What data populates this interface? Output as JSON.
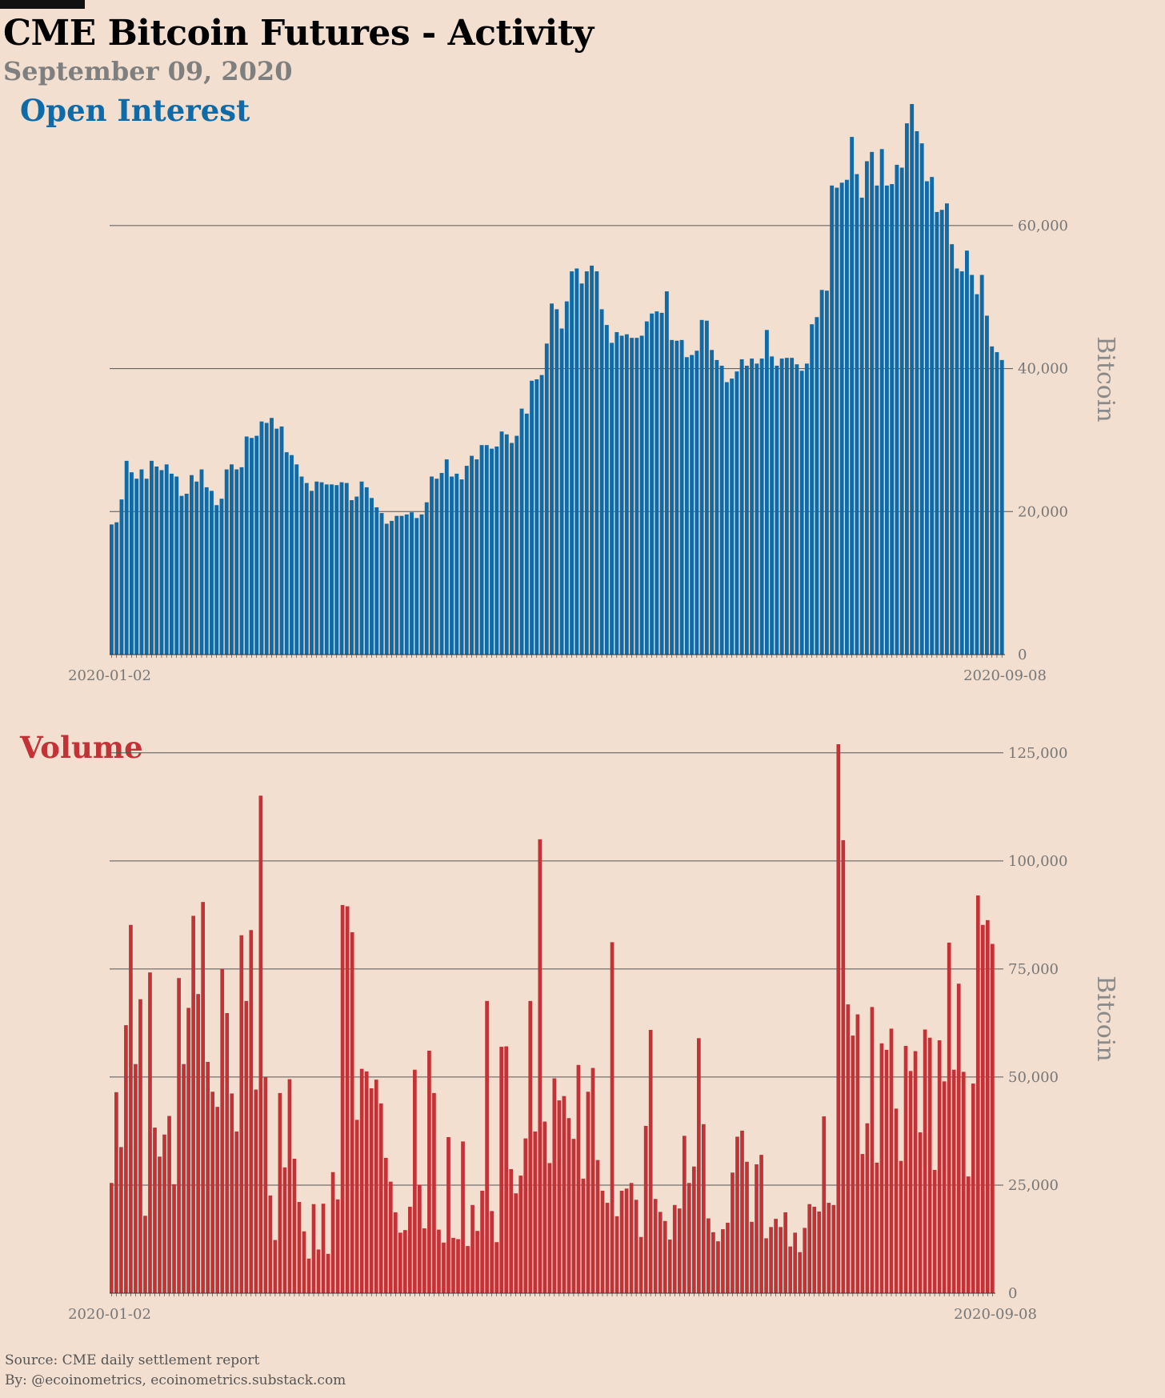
{
  "header": {
    "title": "CME Bitcoin Futures - Activity",
    "subtitle": "September 09, 2020"
  },
  "footer": {
    "source": "Source: CME daily settlement report",
    "byline": "By: @ecoinometrics, ecoinometrics.substack.com"
  },
  "colors": {
    "open_interest": "#0f6aa8",
    "volume": "#c23236",
    "background": "#f2dfd0"
  },
  "chart_data": [
    {
      "type": "bar",
      "panel_title": "Open Interest",
      "ylabel": "Bitcoin",
      "x_first_label": "2020-01-02",
      "x_last_label": "2020-09-08",
      "ylim": [
        0,
        77000
      ],
      "yticks": [
        0,
        20000,
        40000,
        60000
      ],
      "ytick_labels": [
        "0",
        "20,000",
        "40,000",
        "60,000"
      ],
      "grid": "horizontal",
      "values": [
        18200,
        18500,
        21700,
        27100,
        25500,
        24600,
        25900,
        24600,
        27100,
        26300,
        25800,
        26600,
        25300,
        24900,
        22200,
        22500,
        25100,
        24200,
        25900,
        23400,
        22900,
        20900,
        21800,
        25900,
        26600,
        25900,
        26200,
        30500,
        30300,
        30600,
        32600,
        32400,
        33100,
        31600,
        31900,
        28300,
        27900,
        26600,
        24900,
        24000,
        22900,
        24200,
        24100,
        23800,
        23800,
        23700,
        24100,
        24000,
        21600,
        22100,
        24200,
        23400,
        21900,
        20600,
        19800,
        18300,
        18700,
        19400,
        19400,
        19600,
        19900,
        19100,
        19600,
        21300,
        24900,
        24600,
        25400,
        27300,
        24900,
        25300,
        24500,
        26400,
        27800,
        27300,
        29300,
        29300,
        28800,
        29100,
        31200,
        30800,
        29600,
        30600,
        34400,
        33700,
        38300,
        38500,
        39100,
        43500,
        49100,
        48300,
        45600,
        49400,
        53600,
        54000,
        51900,
        53600,
        54400,
        53600,
        48300,
        46100,
        43600,
        45100,
        44600,
        44800,
        44300,
        44300,
        44600,
        46600,
        47700,
        48000,
        47800,
        50800,
        44000,
        43900,
        44000,
        41600,
        41900,
        42500,
        46800,
        46700,
        42600,
        41200,
        40400,
        38100,
        38600,
        39600,
        41300,
        40400,
        41400,
        40700,
        41400,
        45400,
        41700,
        40400,
        41400,
        41500,
        41500,
        40600,
        39700,
        40700,
        46200,
        47200,
        51000,
        50900,
        65600,
        65300,
        66000,
        66400,
        72400,
        67200,
        63900,
        69000,
        70300,
        65600,
        70700,
        65600,
        65800,
        68500,
        68100,
        74300,
        79800,
        73200,
        71500,
        66200,
        66800,
        61900,
        62200,
        63100,
        57400,
        54000,
        53600,
        56500,
        53100,
        50400,
        53100,
        47400,
        43100,
        42300,
        41200
      ]
    },
    {
      "type": "bar",
      "panel_title": "Volume",
      "ylabel": "Bitcoin",
      "x_first_label": "2020-01-02",
      "x_last_label": "2020-09-08",
      "ylim": [
        0,
        127000
      ],
      "yticks": [
        0,
        25000,
        50000,
        75000,
        100000,
        125000
      ],
      "ytick_labels": [
        "0",
        "25,000",
        "50,000",
        "75,000",
        "100,000",
        "125,000"
      ],
      "grid": "horizontal",
      "values": [
        25500,
        46500,
        33800,
        62000,
        85200,
        53000,
        68000,
        17900,
        74200,
        38300,
        31600,
        36700,
        41000,
        25200,
        72900,
        53000,
        66000,
        87300,
        69200,
        90500,
        53500,
        46600,
        43100,
        75000,
        64800,
        46200,
        37400,
        82800,
        67600,
        84000,
        47100,
        115100,
        50000,
        22600,
        12300,
        46300,
        29100,
        49500,
        31100,
        21100,
        14300,
        8000,
        20600,
        10100,
        20700,
        9100,
        28000,
        21700,
        89800,
        89500,
        83500,
        40100,
        51900,
        51300,
        47400,
        49400,
        43900,
        31300,
        25800,
        18700,
        14000,
        14600,
        20000,
        51700,
        25100,
        15000,
        56100,
        46300,
        14700,
        11700,
        36100,
        12800,
        12500,
        35100,
        10900,
        20400,
        14400,
        23700,
        67600,
        19000,
        11800,
        57000,
        57100,
        28700,
        23100,
        27200,
        35800,
        67600,
        37400,
        105000,
        39700,
        30100,
        49700,
        44600,
        45600,
        40500,
        35700,
        52800,
        26500,
        46600,
        52100,
        30800,
        23700,
        20900,
        81200,
        17800,
        23700,
        24200,
        25500,
        21600,
        13000,
        38700,
        60900,
        21800,
        18800,
        16700,
        12400,
        20400,
        19600,
        36400,
        25500,
        29300,
        59000,
        39100,
        17300,
        14100,
        12000,
        14800,
        16300,
        27900,
        36200,
        37600,
        30400,
        16500,
        29800,
        32000,
        12700,
        15300,
        17200,
        15300,
        18700,
        10800,
        14000,
        9500,
        15100,
        20600,
        20000,
        18900,
        40900,
        20900,
        20400,
        128000,
        104800,
        66800,
        59600,
        64500,
        32200,
        39300,
        66200,
        30200,
        57800,
        56300,
        61200,
        42700,
        30600,
        57200,
        51400,
        56000,
        37200,
        61000,
        59100,
        28500,
        58500,
        49000,
        81100,
        51700,
        71600,
        51200,
        27000,
        48500,
        92000,
        85200,
        86300,
        80800
      ]
    }
  ]
}
